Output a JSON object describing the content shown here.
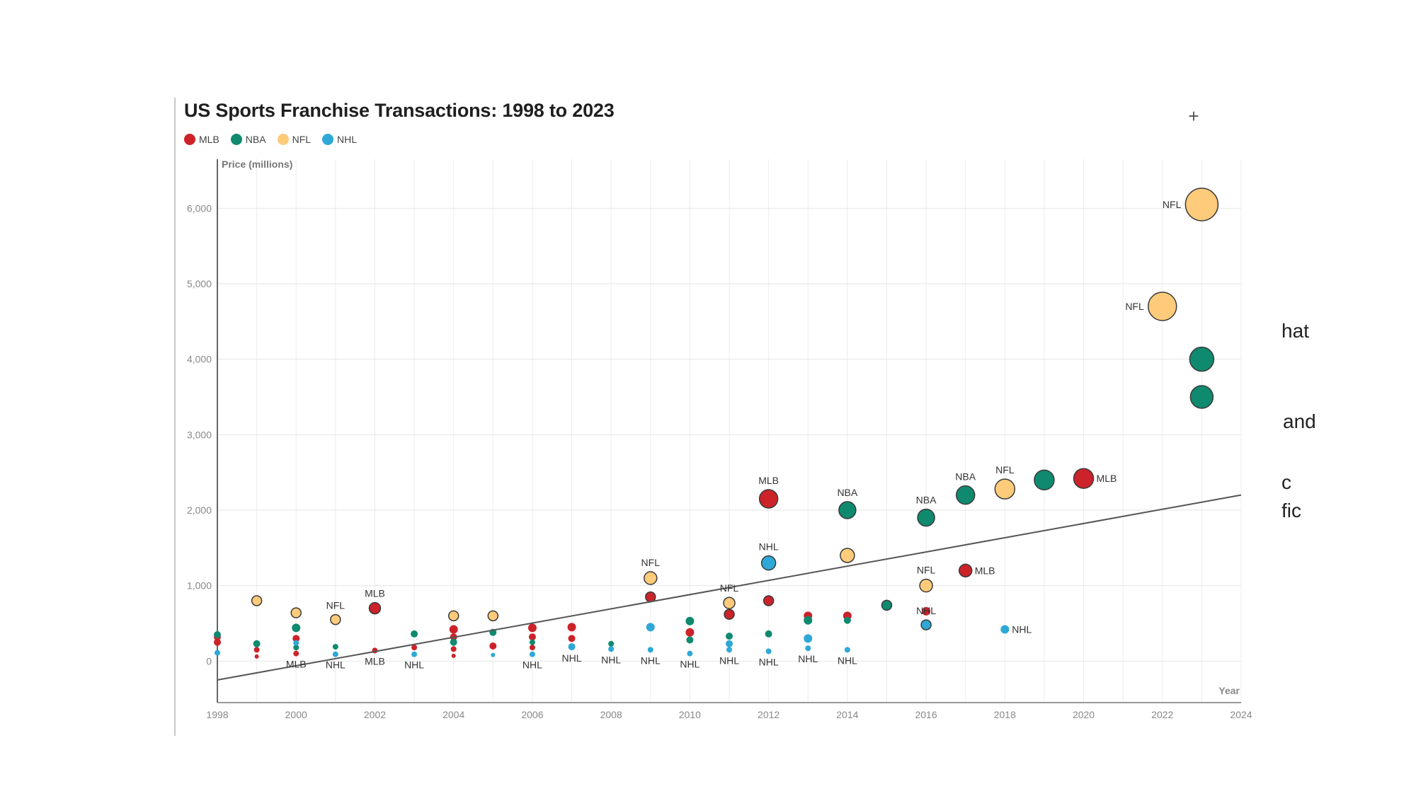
{
  "chart_data": {
    "type": "scatter",
    "title": "US Sports Franchise Transactions: 1998 to 2023",
    "ylabel": "Price (millions)",
    "xlabel": "Year",
    "xlim": [
      1998,
      2024
    ],
    "ylim": [
      -550,
      6650
    ],
    "x_ticks": [
      "1998",
      "2000",
      "2002",
      "2004",
      "2006",
      "2008",
      "2010",
      "2012",
      "2014",
      "2016",
      "2018",
      "2020",
      "2022",
      "2024"
    ],
    "y_ticks": [
      "0",
      "1,000",
      "2,000",
      "3,000",
      "4,000",
      "5,000",
      "6,000"
    ],
    "grid": true,
    "legend_position": "top-left",
    "trendline": {
      "start": [
        1998,
        -250
      ],
      "end": [
        2024,
        2200
      ]
    },
    "series": [
      {
        "name": "MLB",
        "color": "#cc2229",
        "points": [
          {
            "x": 1998,
            "y": 320,
            "size": 5
          },
          {
            "x": 1998,
            "y": 250,
            "size": 5
          },
          {
            "x": 1999,
            "y": 150,
            "size": 4
          },
          {
            "x": 1999,
            "y": 60,
            "size": 3
          },
          {
            "x": 2000,
            "y": 300,
            "size": 5
          },
          {
            "x": 2000,
            "y": 100,
            "size": 4,
            "label": "MLB"
          },
          {
            "x": 2002,
            "y": 700,
            "size": 8,
            "label": "MLB"
          },
          {
            "x": 2002,
            "y": 140,
            "size": 4,
            "label": "MLB"
          },
          {
            "x": 2003,
            "y": 180,
            "size": 4
          },
          {
            "x": 2004,
            "y": 420,
            "size": 6
          },
          {
            "x": 2004,
            "y": 320,
            "size": 5
          },
          {
            "x": 2004,
            "y": 160,
            "size": 4
          },
          {
            "x": 2004,
            "y": 70,
            "size": 3
          },
          {
            "x": 2005,
            "y": 200,
            "size": 5
          },
          {
            "x": 2006,
            "y": 440,
            "size": 6
          },
          {
            "x": 2006,
            "y": 320,
            "size": 5
          },
          {
            "x": 2006,
            "y": 180,
            "size": 4
          },
          {
            "x": 2007,
            "y": 450,
            "size": 6
          },
          {
            "x": 2007,
            "y": 300,
            "size": 5
          },
          {
            "x": 2009,
            "y": 850,
            "size": 7
          },
          {
            "x": 2010,
            "y": 380,
            "size": 6
          },
          {
            "x": 2011,
            "y": 620,
            "size": 7
          },
          {
            "x": 2012,
            "y": 2150,
            "size": 13,
            "label": "MLB"
          },
          {
            "x": 2012,
            "y": 800,
            "size": 7
          },
          {
            "x": 2013,
            "y": 600,
            "size": 6
          },
          {
            "x": 2014,
            "y": 600,
            "size": 6
          },
          {
            "x": 2016,
            "y": 660,
            "size": 6
          },
          {
            "x": 2017,
            "y": 1200,
            "size": 9,
            "label": "MLB"
          },
          {
            "x": 2020,
            "y": 2420,
            "size": 14,
            "label": "MLB"
          }
        ]
      },
      {
        "name": "NBA",
        "color": "#0f8a6f",
        "points": [
          {
            "x": 1998,
            "y": 350,
            "size": 5
          },
          {
            "x": 1999,
            "y": 230,
            "size": 5
          },
          {
            "x": 2000,
            "y": 440,
            "size": 6
          },
          {
            "x": 2000,
            "y": 180,
            "size": 4
          },
          {
            "x": 2001,
            "y": 190,
            "size": 4
          },
          {
            "x": 2003,
            "y": 360,
            "size": 5
          },
          {
            "x": 2004,
            "y": 250,
            "size": 5
          },
          {
            "x": 2005,
            "y": 380,
            "size": 5
          },
          {
            "x": 2006,
            "y": 250,
            "size": 4
          },
          {
            "x": 2008,
            "y": 230,
            "size": 4
          },
          {
            "x": 2010,
            "y": 530,
            "size": 6
          },
          {
            "x": 2010,
            "y": 280,
            "size": 5
          },
          {
            "x": 2011,
            "y": 330,
            "size": 5
          },
          {
            "x": 2012,
            "y": 360,
            "size": 5
          },
          {
            "x": 2013,
            "y": 540,
            "size": 6
          },
          {
            "x": 2014,
            "y": 2000,
            "size": 12,
            "label": "NBA"
          },
          {
            "x": 2014,
            "y": 540,
            "size": 5
          },
          {
            "x": 2015,
            "y": 740,
            "size": 7
          },
          {
            "x": 2016,
            "y": 1900,
            "size": 12,
            "label": "NBA"
          },
          {
            "x": 2017,
            "y": 2200,
            "size": 13,
            "label": "NBA"
          },
          {
            "x": 2019,
            "y": 2400,
            "size": 14
          },
          {
            "x": 2023,
            "y": 4000,
            "size": 17
          },
          {
            "x": 2023,
            "y": 3500,
            "size": 16
          }
        ]
      },
      {
        "name": "NFL",
        "color": "#fdcb7a",
        "points": [
          {
            "x": 1999,
            "y": 800,
            "size": 7
          },
          {
            "x": 2000,
            "y": 640,
            "size": 7
          },
          {
            "x": 2001,
            "y": 550,
            "size": 7,
            "label": "NFL"
          },
          {
            "x": 2004,
            "y": 600,
            "size": 7
          },
          {
            "x": 2005,
            "y": 600,
            "size": 7
          },
          {
            "x": 2009,
            "y": 1100,
            "size": 9,
            "label": "NFL"
          },
          {
            "x": 2011,
            "y": 770,
            "size": 8,
            "label": "NFL"
          },
          {
            "x": 2014,
            "y": 1400,
            "size": 10
          },
          {
            "x": 2016,
            "y": 1000,
            "size": 9,
            "label": "NFL"
          },
          {
            "x": 2018,
            "y": 2280,
            "size": 14,
            "label": "NFL"
          },
          {
            "x": 2022,
            "y": 4700,
            "size": 20,
            "label": "NFL"
          },
          {
            "x": 2023,
            "y": 6050,
            "size": 23,
            "label": "NFL"
          }
        ]
      },
      {
        "name": "NHL",
        "color": "#2ea8d6",
        "points": [
          {
            "x": 1998,
            "y": 110,
            "size": 4
          },
          {
            "x": 2000,
            "y": 240,
            "size": 4
          },
          {
            "x": 2001,
            "y": 90,
            "size": 4,
            "label": "NHL"
          },
          {
            "x": 2003,
            "y": 90,
            "size": 4,
            "label": "NHL"
          },
          {
            "x": 2005,
            "y": 80,
            "size": 3
          },
          {
            "x": 2006,
            "y": 90,
            "size": 4,
            "label": "NHL"
          },
          {
            "x": 2007,
            "y": 190,
            "size": 5,
            "label": "NHL"
          },
          {
            "x": 2008,
            "y": 160,
            "size": 4,
            "label": "NHL"
          },
          {
            "x": 2009,
            "y": 450,
            "size": 6
          },
          {
            "x": 2009,
            "y": 150,
            "size": 4,
            "label": "NHL"
          },
          {
            "x": 2010,
            "y": 100,
            "size": 4,
            "label": "NHL"
          },
          {
            "x": 2011,
            "y": 230,
            "size": 5
          },
          {
            "x": 2011,
            "y": 150,
            "size": 4,
            "label": "NHL"
          },
          {
            "x": 2012,
            "y": 1300,
            "size": 10,
            "label": "NHL"
          },
          {
            "x": 2012,
            "y": 130,
            "size": 4,
            "label": "NHL"
          },
          {
            "x": 2013,
            "y": 300,
            "size": 6
          },
          {
            "x": 2013,
            "y": 170,
            "size": 4,
            "label": "NHL"
          },
          {
            "x": 2014,
            "y": 150,
            "size": 4,
            "label": "NHL"
          },
          {
            "x": 2016,
            "y": 480,
            "size": 7,
            "label": "NHL"
          },
          {
            "x": 2018,
            "y": 420,
            "size": 6,
            "label": "NHL"
          }
        ]
      }
    ]
  },
  "toolbar": {
    "expand_icon": "plus-icon",
    "expand_symbol": "+"
  },
  "side_text": [
    "hat",
    "and",
    "c",
    "fic"
  ]
}
